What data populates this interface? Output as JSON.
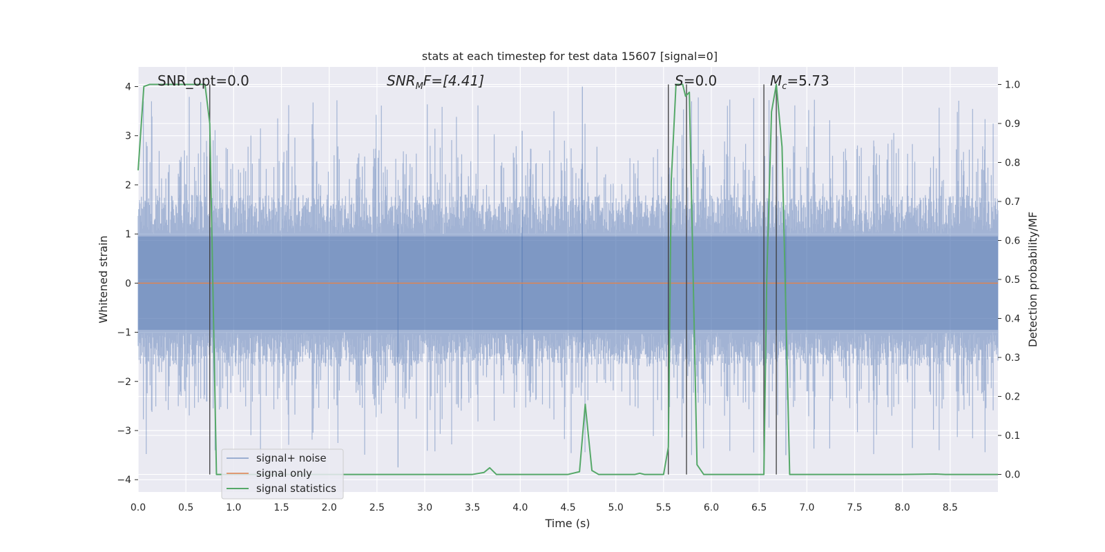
{
  "chart_data": {
    "type": "line",
    "title": "stats at each timestep for test data 15607 [signal=0]",
    "xlabel": "Time (s)",
    "ylabel": "Whitened strain",
    "ylabel_right": "Detection probability/MF",
    "xlim": [
      0,
      9.0
    ],
    "ylim": [
      -4.25,
      4.4
    ],
    "ylim_right": [
      -0.045,
      1.045
    ],
    "x_ticks": [
      0.0,
      0.5,
      1.0,
      1.5,
      2.0,
      2.5,
      3.0,
      3.5,
      4.0,
      4.5,
      5.0,
      5.5,
      6.0,
      6.5,
      7.0,
      7.5,
      8.0,
      8.5
    ],
    "x_tick_labels": [
      "0.0",
      "0.5",
      "1.0",
      "1.5",
      "2.0",
      "2.5",
      "3.0",
      "3.5",
      "4.0",
      "4.5",
      "5.0",
      "5.5",
      "6.0",
      "6.5",
      "7.0",
      "7.5",
      "8.0",
      "8.5"
    ],
    "y_ticks": [
      4,
      3,
      2,
      1,
      0,
      -1,
      -2,
      -3,
      -4
    ],
    "y_tick_labels": [
      "4",
      "3",
      "2",
      "1",
      "0",
      "−1",
      "−2",
      "−3",
      "−4"
    ],
    "y_right_ticks": [
      1.0,
      0.9,
      0.8,
      0.7,
      0.6,
      0.5,
      0.4,
      0.3,
      0.2,
      0.1,
      0.0
    ],
    "y_right_tick_labels": [
      "1.0",
      "0.9",
      "0.8",
      "0.7",
      "0.6",
      "0.5",
      "0.4",
      "0.3",
      "0.2",
      "0.1",
      "0.0"
    ],
    "grid": true,
    "legend_position": "lower-left",
    "annotations": [
      {
        "text": "SNR_opt=0.0",
        "x": 0.2,
        "y": 4.1
      },
      {
        "text_main": "SNR",
        "text_sub": "M",
        "text_tail": "F=[4.41]",
        "x": 2.6,
        "y": 4.1
      },
      {
        "text_main": "S",
        "text_tail": "=0.0",
        "x": 5.63,
        "y": 4.1
      },
      {
        "text_main": "M",
        "text_sub": "c",
        "text_tail": "=5.73",
        "x": 6.6,
        "y": 4.1
      }
    ],
    "series": [
      {
        "name": "signal+ noise",
        "color": "#4c72b0",
        "kind": "noise",
        "typical_range": [
          -1.5,
          1.7
        ],
        "peak_max": 4.0,
        "peak_min": -3.75
      },
      {
        "name": "signal only",
        "color": "#dd8452",
        "x": [
          0,
          9.0
        ],
        "y": [
          0,
          0
        ]
      },
      {
        "name": "signal statistics",
        "color": "#55a868",
        "axis": "right",
        "x": [
          0.0,
          0.06,
          0.12,
          0.2,
          0.3,
          0.4,
          0.5,
          0.6,
          0.7,
          0.75,
          0.82,
          1.0,
          2.0,
          3.0,
          3.5,
          3.62,
          3.68,
          3.75,
          4.0,
          4.5,
          4.62,
          4.68,
          4.75,
          4.82,
          5.0,
          5.2,
          5.25,
          5.3,
          5.5,
          5.55,
          5.58,
          5.63,
          5.7,
          5.73,
          5.77,
          5.85,
          5.92,
          6.0,
          6.3,
          6.55,
          6.58,
          6.63,
          6.68,
          6.74,
          6.82,
          7.0,
          8.0,
          8.35,
          8.45,
          9.0
        ],
        "y": [
          0.78,
          0.995,
          1.0,
          1.0,
          1.0,
          1.0,
          1.0,
          1.0,
          1.0,
          0.9,
          0.0,
          0.0,
          0.0,
          0.0,
          0.0,
          0.005,
          0.017,
          0.0,
          0.0,
          0.0,
          0.007,
          0.18,
          0.01,
          0.0,
          0.0,
          0.0,
          0.003,
          0.0,
          0.0,
          0.07,
          0.75,
          1.0,
          1.0,
          0.97,
          0.98,
          0.025,
          0.0,
          0.0,
          0.0,
          0.0,
          0.5,
          0.93,
          1.0,
          0.84,
          0.0,
          0.0,
          0.0,
          0.001,
          0.0,
          0.0
        ]
      }
    ],
    "vertical_lines": [
      0.75,
      5.55,
      5.74,
      6.55,
      6.68
    ]
  }
}
